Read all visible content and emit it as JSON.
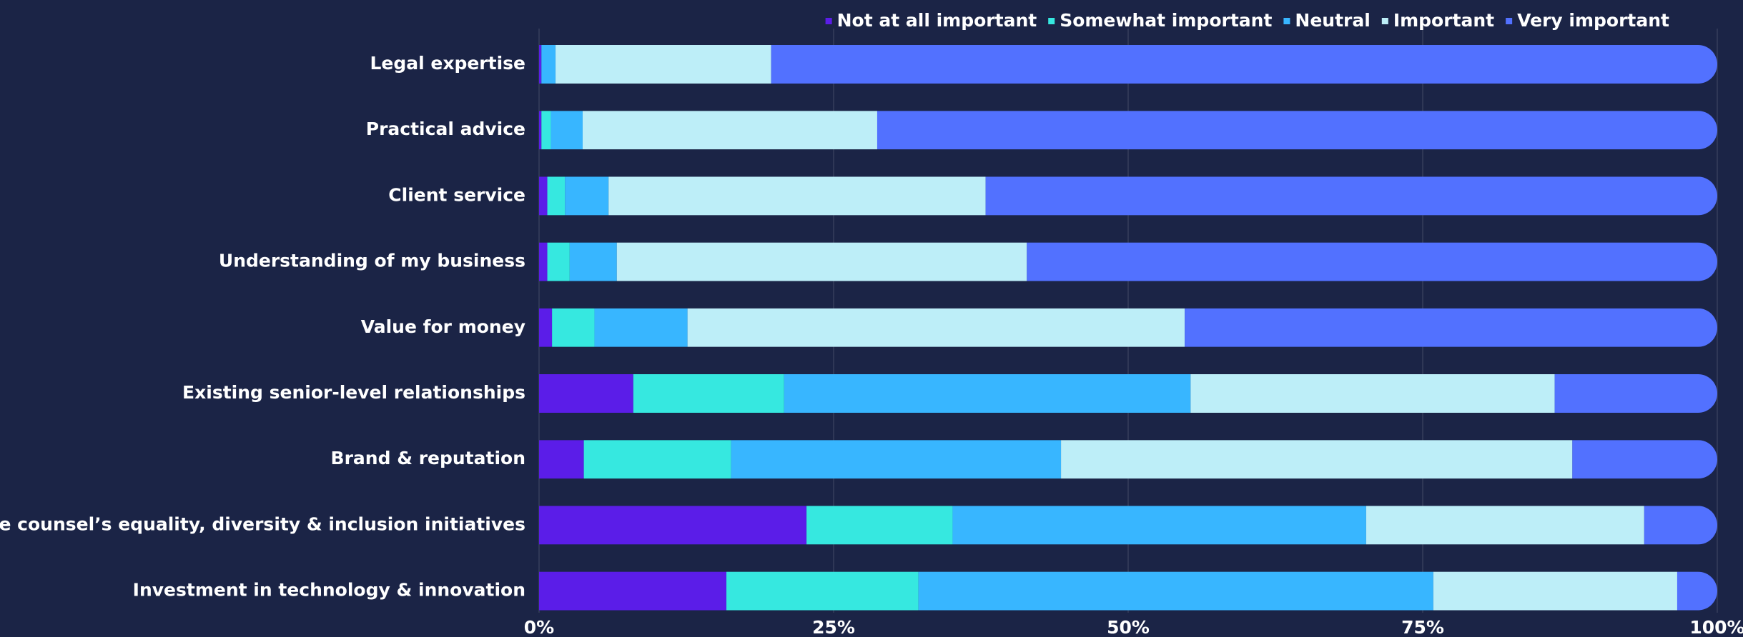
{
  "chart_data": {
    "type": "stacked_barh",
    "categories": [
      "Legal expertise",
      "Practical advice",
      "Client service",
      "Understanding of my business",
      "Value for money",
      "Existing senior-level relationships",
      "Brand & reputation",
      "Outside counsel’s equality, diversity & inclusion initiatives",
      "Investment in technology & innovation"
    ],
    "series": [
      {
        "name": "Not at all important",
        "color": "#5b1de8",
        "values": [
          0.2,
          0.2,
          0.7,
          0.7,
          1.1,
          8.0,
          3.8,
          22.7,
          15.9
        ]
      },
      {
        "name": "Somewhat important",
        "color": "#36e8e0",
        "values": [
          0,
          0.8,
          1.5,
          1.9,
          3.6,
          12.8,
          12.5,
          12.4,
          16.3
        ]
      },
      {
        "name": "Neutral",
        "color": "#38b6ff",
        "values": [
          1.2,
          2.7,
          3.7,
          4.0,
          7.9,
          34.5,
          28.0,
          35.1,
          43.7
        ]
      },
      {
        "name": "Important",
        "color": "#bdeef8",
        "values": [
          18.3,
          25.0,
          32.0,
          34.8,
          42.2,
          30.9,
          43.4,
          23.6,
          20.7
        ]
      },
      {
        "name": "Very important",
        "color": "#5271ff",
        "values": [
          80.3,
          71.3,
          62.1,
          58.6,
          45.2,
          13.8,
          12.3,
          6.2,
          3.4
        ]
      }
    ],
    "xlim": [
      0,
      100
    ],
    "xticks": [
      {
        "value": 0,
        "label": "0%"
      },
      {
        "value": 25,
        "label": "25%"
      },
      {
        "value": 50,
        "label": "50%"
      },
      {
        "value": 75,
        "label": "75%"
      },
      {
        "value": 100,
        "label": "100%"
      }
    ],
    "grid": true,
    "legend": "top-right"
  }
}
